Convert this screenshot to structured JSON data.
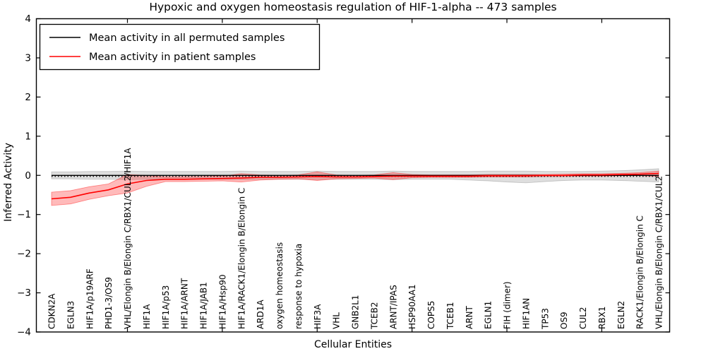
{
  "chart_data": {
    "type": "line",
    "title": "Hypoxic and oxygen homeostasis regulation of HIF-1-alpha -- 473 samples",
    "xlabel": "Cellular Entities",
    "ylabel": "Inferred Activity",
    "ylim": [
      -4,
      4
    ],
    "y_ticks": [
      4,
      3,
      2,
      1,
      0,
      -1,
      -2,
      -3,
      -4
    ],
    "top_tick_indices": [
      4,
      9,
      14,
      19,
      24,
      29
    ],
    "grid": false,
    "legend_position": "upper left",
    "categories": [
      "CDKN2A",
      "EGLN3",
      "HIF1A/p19ARF",
      "PHD1-3/OS9",
      "VHL/Elongin B/Elongin C/RBX1/CUL2/HIF1A",
      "HIF1A",
      "HIF1A/p53",
      "HIF1A/ARNT",
      "HIF1A/JAB1",
      "HIF1A/Hsp90",
      "HIF1A/RACK1/Elongin B/Elongin C",
      "ARD1A",
      "oxygen homeostasis",
      "response to hypoxia",
      "HIF3A",
      "VHL",
      "GNB2L1",
      "TCEB2",
      "ARNT/IPAS",
      "HSP90AA1",
      "COPS5",
      "TCEB1",
      "ARNT",
      "EGLN1",
      "FIH (dimer)",
      "HIF1AN",
      "TP53",
      "OS9",
      "CUL2",
      "RBX1",
      "EGLN2",
      "RACK1/Elongin B/Elongin C",
      "VHL/Elongin B/Elongin C/RBX1/CUL2"
    ],
    "series": [
      {
        "name": "Mean activity in all permuted samples",
        "color": "#000000",
        "band_fill": "rgba(0,0,0,0.13)",
        "band_edge": "rgba(0,0,0,0.18)",
        "mean": [
          0.0,
          0.0,
          0.0,
          0.0,
          0.0,
          0.0,
          0.0,
          0.0,
          0.0,
          0.0,
          0.0,
          0.0,
          0.0,
          0.0,
          0.0,
          0.0,
          0.0,
          0.0,
          0.0,
          0.0,
          0.0,
          0.0,
          0.0,
          0.0,
          0.0,
          0.0,
          0.0,
          0.0,
          0.0,
          0.0,
          0.0,
          0.0,
          0.0
        ],
        "upper": [
          0.09,
          0.09,
          0.1,
          0.1,
          0.11,
          0.1,
          0.1,
          0.1,
          0.1,
          0.1,
          0.11,
          0.1,
          0.1,
          0.1,
          0.11,
          0.1,
          0.1,
          0.1,
          0.11,
          0.1,
          0.1,
          0.1,
          0.1,
          0.11,
          0.11,
          0.11,
          0.1,
          0.1,
          0.1,
          0.11,
          0.12,
          0.14,
          0.17
        ],
        "lower": [
          -0.09,
          -0.09,
          -0.1,
          -0.1,
          -0.11,
          -0.1,
          -0.1,
          -0.1,
          -0.1,
          -0.1,
          -0.11,
          -0.1,
          -0.1,
          -0.1,
          -0.11,
          -0.1,
          -0.1,
          -0.1,
          -0.11,
          -0.1,
          -0.1,
          -0.1,
          -0.12,
          -0.14,
          -0.17,
          -0.19,
          -0.16,
          -0.13,
          -0.12,
          -0.12,
          -0.13,
          -0.15,
          -0.17
        ]
      },
      {
        "name": "Mean activity in patient samples",
        "color": "#ff0000",
        "band_fill": "rgba(255,0,0,0.27)",
        "band_edge": "rgba(255,0,0,0.40)",
        "mean": [
          -0.6,
          -0.56,
          -0.45,
          -0.37,
          -0.22,
          -0.13,
          -0.1,
          -0.1,
          -0.09,
          -0.08,
          -0.07,
          -0.05,
          -0.05,
          -0.04,
          -0.03,
          -0.04,
          -0.04,
          -0.03,
          -0.02,
          -0.02,
          -0.02,
          -0.02,
          -0.02,
          -0.01,
          -0.01,
          -0.01,
          0.0,
          0.0,
          0.01,
          0.01,
          0.02,
          0.03,
          0.05
        ],
        "upper": [
          -0.43,
          -0.39,
          -0.29,
          -0.22,
          0.02,
          0.0,
          -0.04,
          -0.04,
          -0.03,
          -0.02,
          0.04,
          0.01,
          0.0,
          0.01,
          0.09,
          0.01,
          0.0,
          0.01,
          0.07,
          0.02,
          0.01,
          0.01,
          0.01,
          0.02,
          0.02,
          0.02,
          0.02,
          0.03,
          0.04,
          0.04,
          0.05,
          0.07,
          0.11
        ],
        "lower": [
          -0.77,
          -0.73,
          -0.61,
          -0.52,
          -0.45,
          -0.28,
          -0.16,
          -0.16,
          -0.15,
          -0.14,
          -0.17,
          -0.12,
          -0.1,
          -0.09,
          -0.13,
          -0.09,
          -0.08,
          -0.07,
          -0.11,
          -0.06,
          -0.05,
          -0.05,
          -0.05,
          -0.04,
          -0.04,
          -0.04,
          -0.03,
          -0.03,
          -0.02,
          -0.02,
          -0.01,
          -0.01,
          -0.03
        ]
      }
    ],
    "zero_reference": {
      "value": 0,
      "style": "dotted",
      "color": "#000000"
    }
  }
}
